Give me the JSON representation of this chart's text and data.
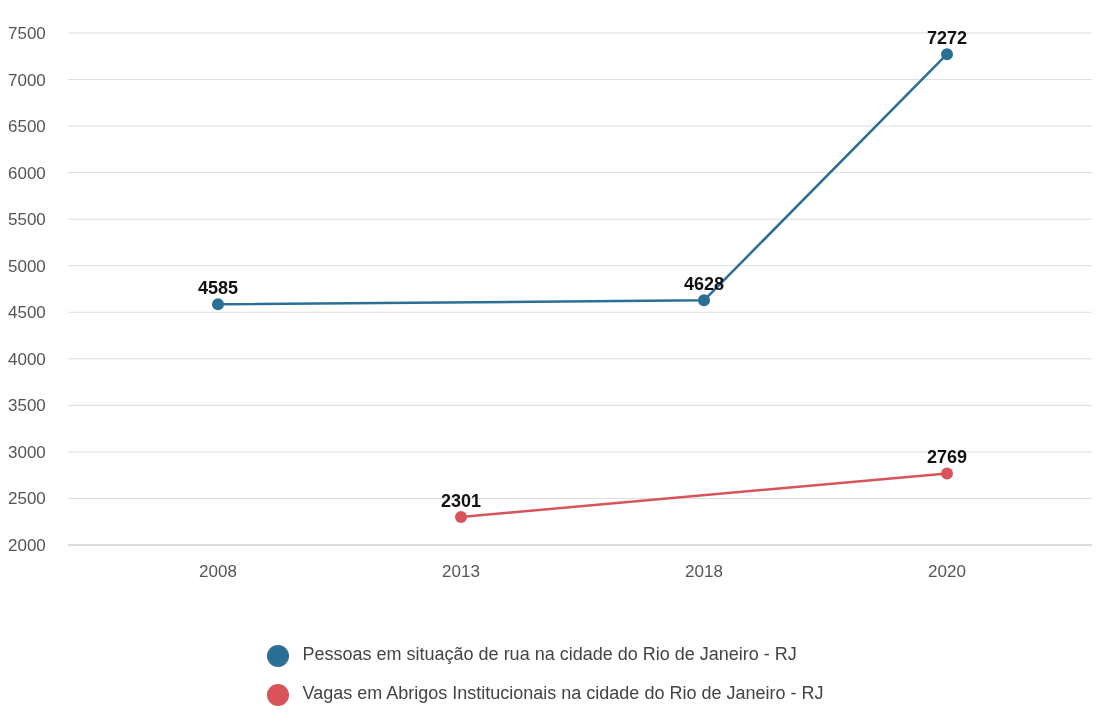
{
  "chart_data": {
    "type": "line",
    "categories": [
      "2008",
      "2013",
      "2018",
      "2020"
    ],
    "series": [
      {
        "name": "Pessoas em situação de rua na cidade do Rio de Janeiro - RJ",
        "color": "#2b6f95",
        "values": [
          4585,
          null,
          4628,
          7272
        ]
      },
      {
        "name": "Vagas em Abrigos Institucionais na cidade do Rio de Janeiro - RJ",
        "color": "#d9545a",
        "values": [
          null,
          2301,
          null,
          2769
        ]
      }
    ],
    "ylim": [
      2000,
      7500
    ],
    "yticks": [
      2000,
      2500,
      3000,
      3500,
      4000,
      4500,
      5000,
      5500,
      6000,
      6500,
      7000,
      7500
    ],
    "grid": "y",
    "legend": "bottom",
    "marker": "circle",
    "line_style": "solid",
    "data_labels": true
  }
}
